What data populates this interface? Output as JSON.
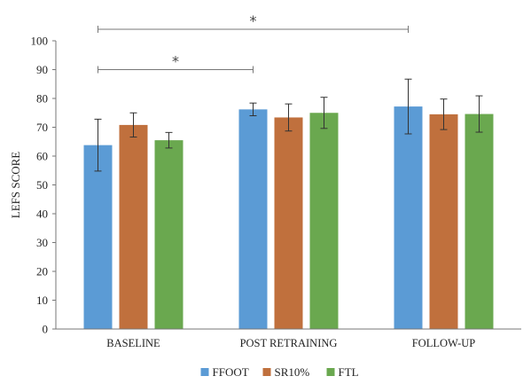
{
  "chart_data": {
    "type": "bar",
    "title": "",
    "xlabel": "",
    "ylabel": "LEFS SCORE",
    "ylim": [
      0,
      100
    ],
    "yticks": [
      0,
      10,
      20,
      30,
      40,
      50,
      60,
      70,
      80,
      90,
      100
    ],
    "categories": [
      "BASELINE",
      "POST RETRAINING",
      "FOLLOW-UP"
    ],
    "series": [
      {
        "name": "FFOOT",
        "color": "#5b9bd5",
        "values": [
          63.8,
          76.2,
          77.2
        ],
        "error": [
          9.0,
          2.2,
          9.5
        ]
      },
      {
        "name": "SR10%",
        "color": "#c0703d",
        "values": [
          70.8,
          73.4,
          74.5
        ],
        "error": [
          4.2,
          4.7,
          5.3
        ]
      },
      {
        "name": "FTL",
        "color": "#6aa84f",
        "values": [
          65.5,
          75.0,
          74.6
        ],
        "error": [
          2.7,
          5.4,
          6.3
        ]
      }
    ],
    "significance": [
      {
        "label": "*",
        "from_category": "BASELINE",
        "to_category": "POST RETRAINING",
        "level": 90
      },
      {
        "label": "*",
        "from_category": "BASELINE",
        "to_category": "FOLLOW-UP",
        "level": 104
      }
    ],
    "legend_position": "bottom",
    "grid": false
  }
}
